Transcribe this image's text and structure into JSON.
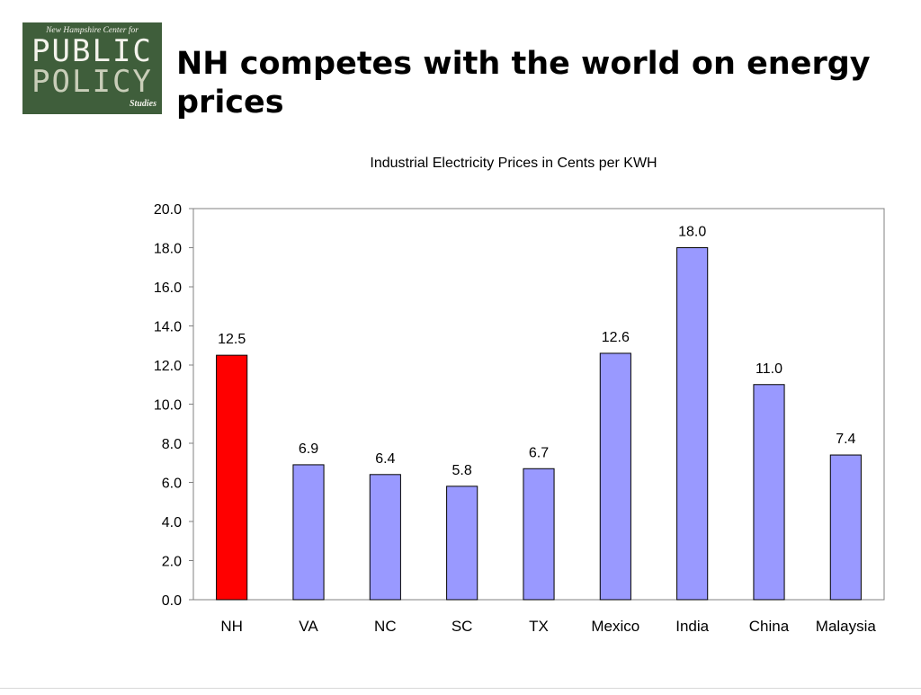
{
  "logo": {
    "top_line": "New Hampshire Center for",
    "word1": "PUBLIC",
    "word2": "POLICY",
    "word3": "Studies"
  },
  "slide": {
    "title": "NH competes with the world on energy prices"
  },
  "colors": {
    "highlight_bar": "#ff0000",
    "default_bar": "#9999ff",
    "bar_outline": "#000000",
    "plot_border": "#808080"
  },
  "chart_data": {
    "type": "bar",
    "title": "Industrial Electricity Prices in Cents per KWH",
    "categories": [
      "NH",
      "VA",
      "NC",
      "SC",
      "TX",
      "Mexico",
      "India",
      "China",
      "Malaysia"
    ],
    "values": [
      12.5,
      6.9,
      6.4,
      5.8,
      6.7,
      12.6,
      18.0,
      11.0,
      7.4
    ],
    "value_labels": [
      "12.5",
      "6.9",
      "6.4",
      "5.8",
      "6.7",
      "12.6",
      "18.0",
      "11.0",
      "7.4"
    ],
    "highlighted_category": "NH",
    "ylim": [
      0,
      20
    ],
    "yticks": [
      "0.0",
      "2.0",
      "4.0",
      "6.0",
      "8.0",
      "10.0",
      "12.0",
      "14.0",
      "16.0",
      "18.0",
      "20.0"
    ],
    "grid": false,
    "legend": "none"
  }
}
